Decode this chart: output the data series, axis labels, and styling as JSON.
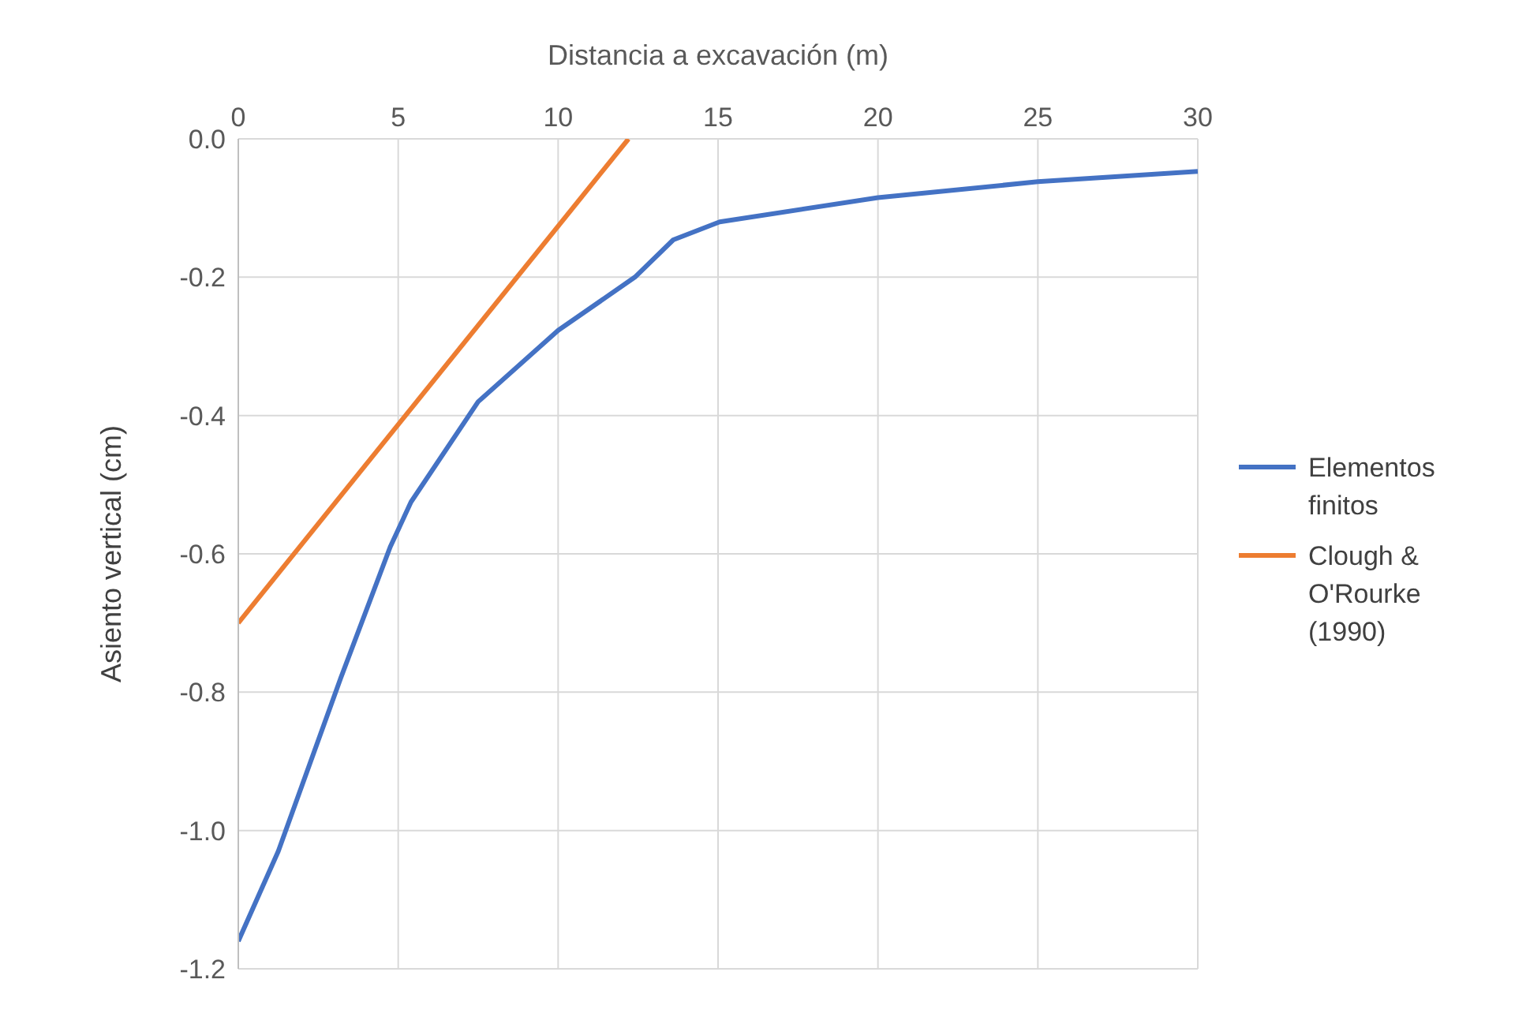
{
  "chart_data": {
    "type": "line",
    "xlabel": "Distancia a excavación (m)",
    "ylabel": "Asiento vertical (cm)",
    "xlim": [
      0,
      30
    ],
    "xticks": [
      0,
      5,
      10,
      15,
      20,
      25,
      30
    ],
    "ylim": [
      -1.2,
      0
    ],
    "yticks": [
      {
        "value": -1.2,
        "label": "-1.2"
      },
      {
        "value": -1,
        "label": "-1.0"
      },
      {
        "value": -0.8,
        "label": "-0.8"
      },
      {
        "value": -0.6,
        "label": "-0.6"
      },
      {
        "value": -0.4,
        "label": "-0.4"
      },
      {
        "value": -0.2,
        "label": "-0.2"
      },
      {
        "value": 0,
        "label": "0.0"
      }
    ],
    "grid": true,
    "legend": "right",
    "marker": "none",
    "series": [
      {
        "name": "Elementos finitos",
        "color": "#4472c4",
        "x": [
          0,
          1.25,
          3.2,
          4.75,
          5.4,
          7.5,
          10,
          12.4,
          13.6,
          15.05,
          20,
          25,
          30
        ],
        "values": [
          -1.16,
          -1.03,
          -0.78,
          -0.59,
          -0.525,
          -0.38,
          -0.277,
          -0.2,
          -0.146,
          -0.12,
          -0.085,
          -0.062,
          -0.047
        ]
      },
      {
        "name": "Clough & O'Rourke (1990)",
        "color": "#ed7d31",
        "x": [
          0,
          12.2
        ],
        "values": [
          -0.7,
          0
        ]
      }
    ]
  }
}
